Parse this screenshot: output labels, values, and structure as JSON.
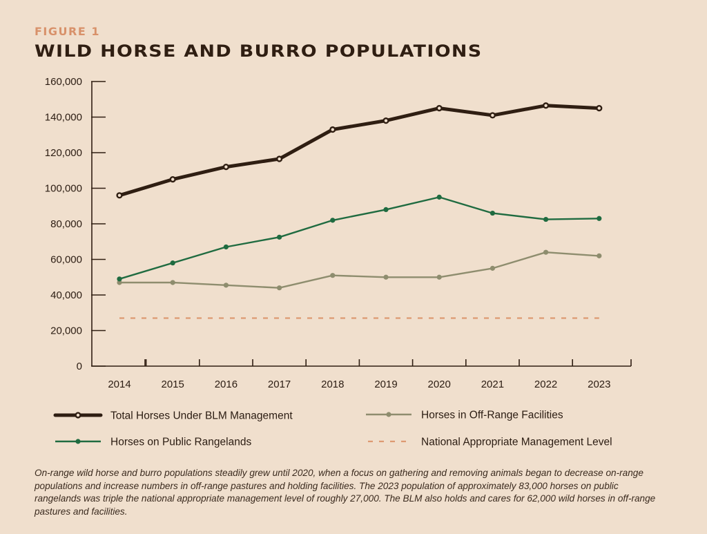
{
  "figure": {
    "label": "FIGURE 1",
    "title": "WILD HORSE AND BURRO POPULATIONS",
    "caption": "On-range wild horse and burro populations steadily grew until 2020, when a focus on gathering and removing animals began to decrease on-range populations and increase numbers in off-range pastures and holding facilities. The 2023 population of approximately 83,000 horses on public rangelands was triple the national appropriate management level of roughly 27,000. The BLM also holds and cares for 62,000 wild horses in off-range pastures and facilities."
  },
  "chart_data": {
    "type": "line",
    "title": "WILD HORSE AND BURRO POPULATIONS",
    "xlabel": "",
    "ylabel": "",
    "ylim": [
      0,
      160000
    ],
    "yticks": [
      0,
      20000,
      40000,
      60000,
      80000,
      100000,
      120000,
      140000,
      160000
    ],
    "ytick_labels": [
      "0",
      "20,000",
      "40,000",
      "60,000",
      "80,000",
      "100,000",
      "120,000",
      "140,000",
      "160,000"
    ],
    "categories": [
      "2014",
      "2015",
      "2016",
      "2017",
      "2018",
      "2019",
      "2020",
      "2021",
      "2022",
      "2023"
    ],
    "grid": false,
    "legend_position": "bottom",
    "series": [
      {
        "key": "total",
        "name": "Total Horses Under BLM Management",
        "values": [
          96000,
          105000,
          112000,
          116500,
          133000,
          138000,
          145000,
          141000,
          146500,
          145000
        ],
        "color": "#2f1e12",
        "style": "thick-markers"
      },
      {
        "key": "rangelands",
        "name": "Horses on Public Rangelands",
        "values": [
          49000,
          58000,
          67000,
          72500,
          82000,
          88000,
          95000,
          86000,
          82500,
          83000
        ],
        "color": "#1f6b40",
        "style": "markers"
      },
      {
        "key": "offrange",
        "name": "Horses in Off-Range Facilities",
        "values": [
          47000,
          47000,
          45500,
          44000,
          51000,
          50000,
          50000,
          55000,
          64000,
          62000
        ],
        "color": "#8e8d6e",
        "style": "markers"
      },
      {
        "key": "aml",
        "name": "National Appropriate Management Level",
        "values": [
          27000,
          27000,
          27000,
          27000,
          27000,
          27000,
          27000,
          27000,
          27000,
          27000
        ],
        "color": "#dd9a72",
        "style": "dashed"
      }
    ]
  }
}
